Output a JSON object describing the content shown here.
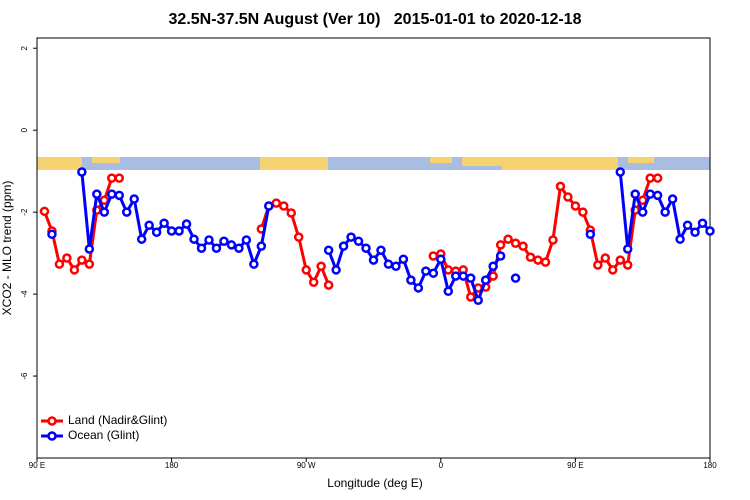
{
  "chart_data": {
    "type": "line",
    "title": "32.5N-37.5N August (Ver 10)   2015-01-01 to 2020-12-18",
    "x_label": "Longitude (deg E)",
    "y_label": "XCO2 - MLO trend (ppm)",
    "xlim": [
      90,
      540
    ],
    "ylim": [
      -8,
      2.25
    ],
    "xticks": [
      {
        "value": 90,
        "label": "90 E"
      },
      180,
      {
        "value": 270,
        "label": "90 W"
      },
      {
        "value": 360,
        "label": "0"
      },
      {
        "value": 450,
        "label": "90 E"
      },
      {
        "value": 540,
        "label": "180"
      }
    ],
    "yticks": [
      -6,
      -4,
      -2,
      0,
      2
    ],
    "legend": "bottomleft",
    "x": [
      95,
      100,
      105,
      110,
      115,
      120,
      125,
      130,
      135,
      140,
      145,
      150,
      155,
      160,
      165,
      170,
      175,
      180,
      185,
      190,
      195,
      200,
      205,
      210,
      215,
      220,
      225,
      230,
      235,
      240,
      245,
      250,
      255,
      260,
      265,
      270,
      275,
      280,
      285,
      290,
      295,
      300,
      305,
      310,
      315,
      320,
      325,
      330,
      335,
      340,
      345,
      350,
      355,
      360,
      365,
      370,
      375,
      380,
      385,
      390,
      395,
      400,
      405,
      410,
      415,
      420,
      425,
      430,
      435,
      440,
      445,
      450,
      455,
      460,
      465,
      470,
      475,
      480,
      485,
      490,
      495,
      500,
      505,
      510,
      515,
      520,
      525,
      530,
      535,
      540
    ],
    "series": [
      {
        "name": "Land (Nadir&Glint)",
        "color": "#ff0000",
        "values": [
          -1.98,
          -2.46,
          -3.27,
          -3.12,
          -3.41,
          -3.17,
          -3.27,
          -1.95,
          -1.71,
          -1.17,
          -1.17,
          null,
          null,
          null,
          null,
          null,
          null,
          null,
          null,
          null,
          null,
          null,
          null,
          null,
          null,
          null,
          null,
          null,
          null,
          -2.41,
          -1.85,
          -1.78,
          -1.85,
          -2.02,
          -2.61,
          -3.41,
          -3.71,
          -3.32,
          -3.78,
          null,
          null,
          null,
          null,
          null,
          null,
          null,
          null,
          null,
          null,
          null,
          null,
          null,
          -3.07,
          -3.02,
          -3.41,
          -3.44,
          -3.41,
          -4.07,
          -3.85,
          -3.83,
          -3.56,
          -2.8,
          -2.66,
          -2.76,
          -2.83,
          -3.1,
          -3.17,
          -3.22,
          -2.68,
          -1.37,
          -1.63,
          -1.85,
          -2.0,
          -2.44,
          -3.29,
          -3.12,
          -3.41,
          -3.17,
          -3.29,
          -1.95,
          -1.71,
          -1.17,
          -1.17,
          null,
          null,
          null,
          null,
          null,
          null,
          null
        ]
      },
      {
        "name": "Ocean (Glint)",
        "color": "#0000ff",
        "values": [
          null,
          -2.54,
          null,
          null,
          null,
          -1.02,
          -2.9,
          -1.56,
          -2.0,
          -1.56,
          -1.59,
          -2.0,
          -1.68,
          -2.66,
          -2.32,
          -2.49,
          -2.27,
          -2.46,
          -2.46,
          -2.29,
          -2.66,
          -2.88,
          -2.68,
          -2.88,
          -2.71,
          -2.8,
          -2.88,
          -2.68,
          -3.27,
          -2.83,
          -1.85,
          null,
          null,
          null,
          null,
          null,
          null,
          null,
          -2.93,
          -3.41,
          -2.83,
          -2.61,
          -2.71,
          -2.88,
          -3.17,
          -2.93,
          -3.27,
          -3.32,
          -3.15,
          -3.66,
          -3.85,
          -3.44,
          -3.49,
          -3.15,
          -3.93,
          -3.56,
          -3.56,
          -3.61,
          -4.15,
          -3.66,
          -3.32,
          -3.07,
          null,
          -3.61,
          null,
          null,
          null,
          null,
          null,
          null,
          null,
          null,
          null,
          -2.54,
          null,
          null,
          null,
          -1.02,
          -2.9,
          -1.56,
          -2.0,
          -1.56,
          -1.59,
          -2.0,
          -1.68,
          -2.66,
          -2.32,
          -2.49,
          -2.27,
          -2.46
        ]
      }
    ]
  }
}
